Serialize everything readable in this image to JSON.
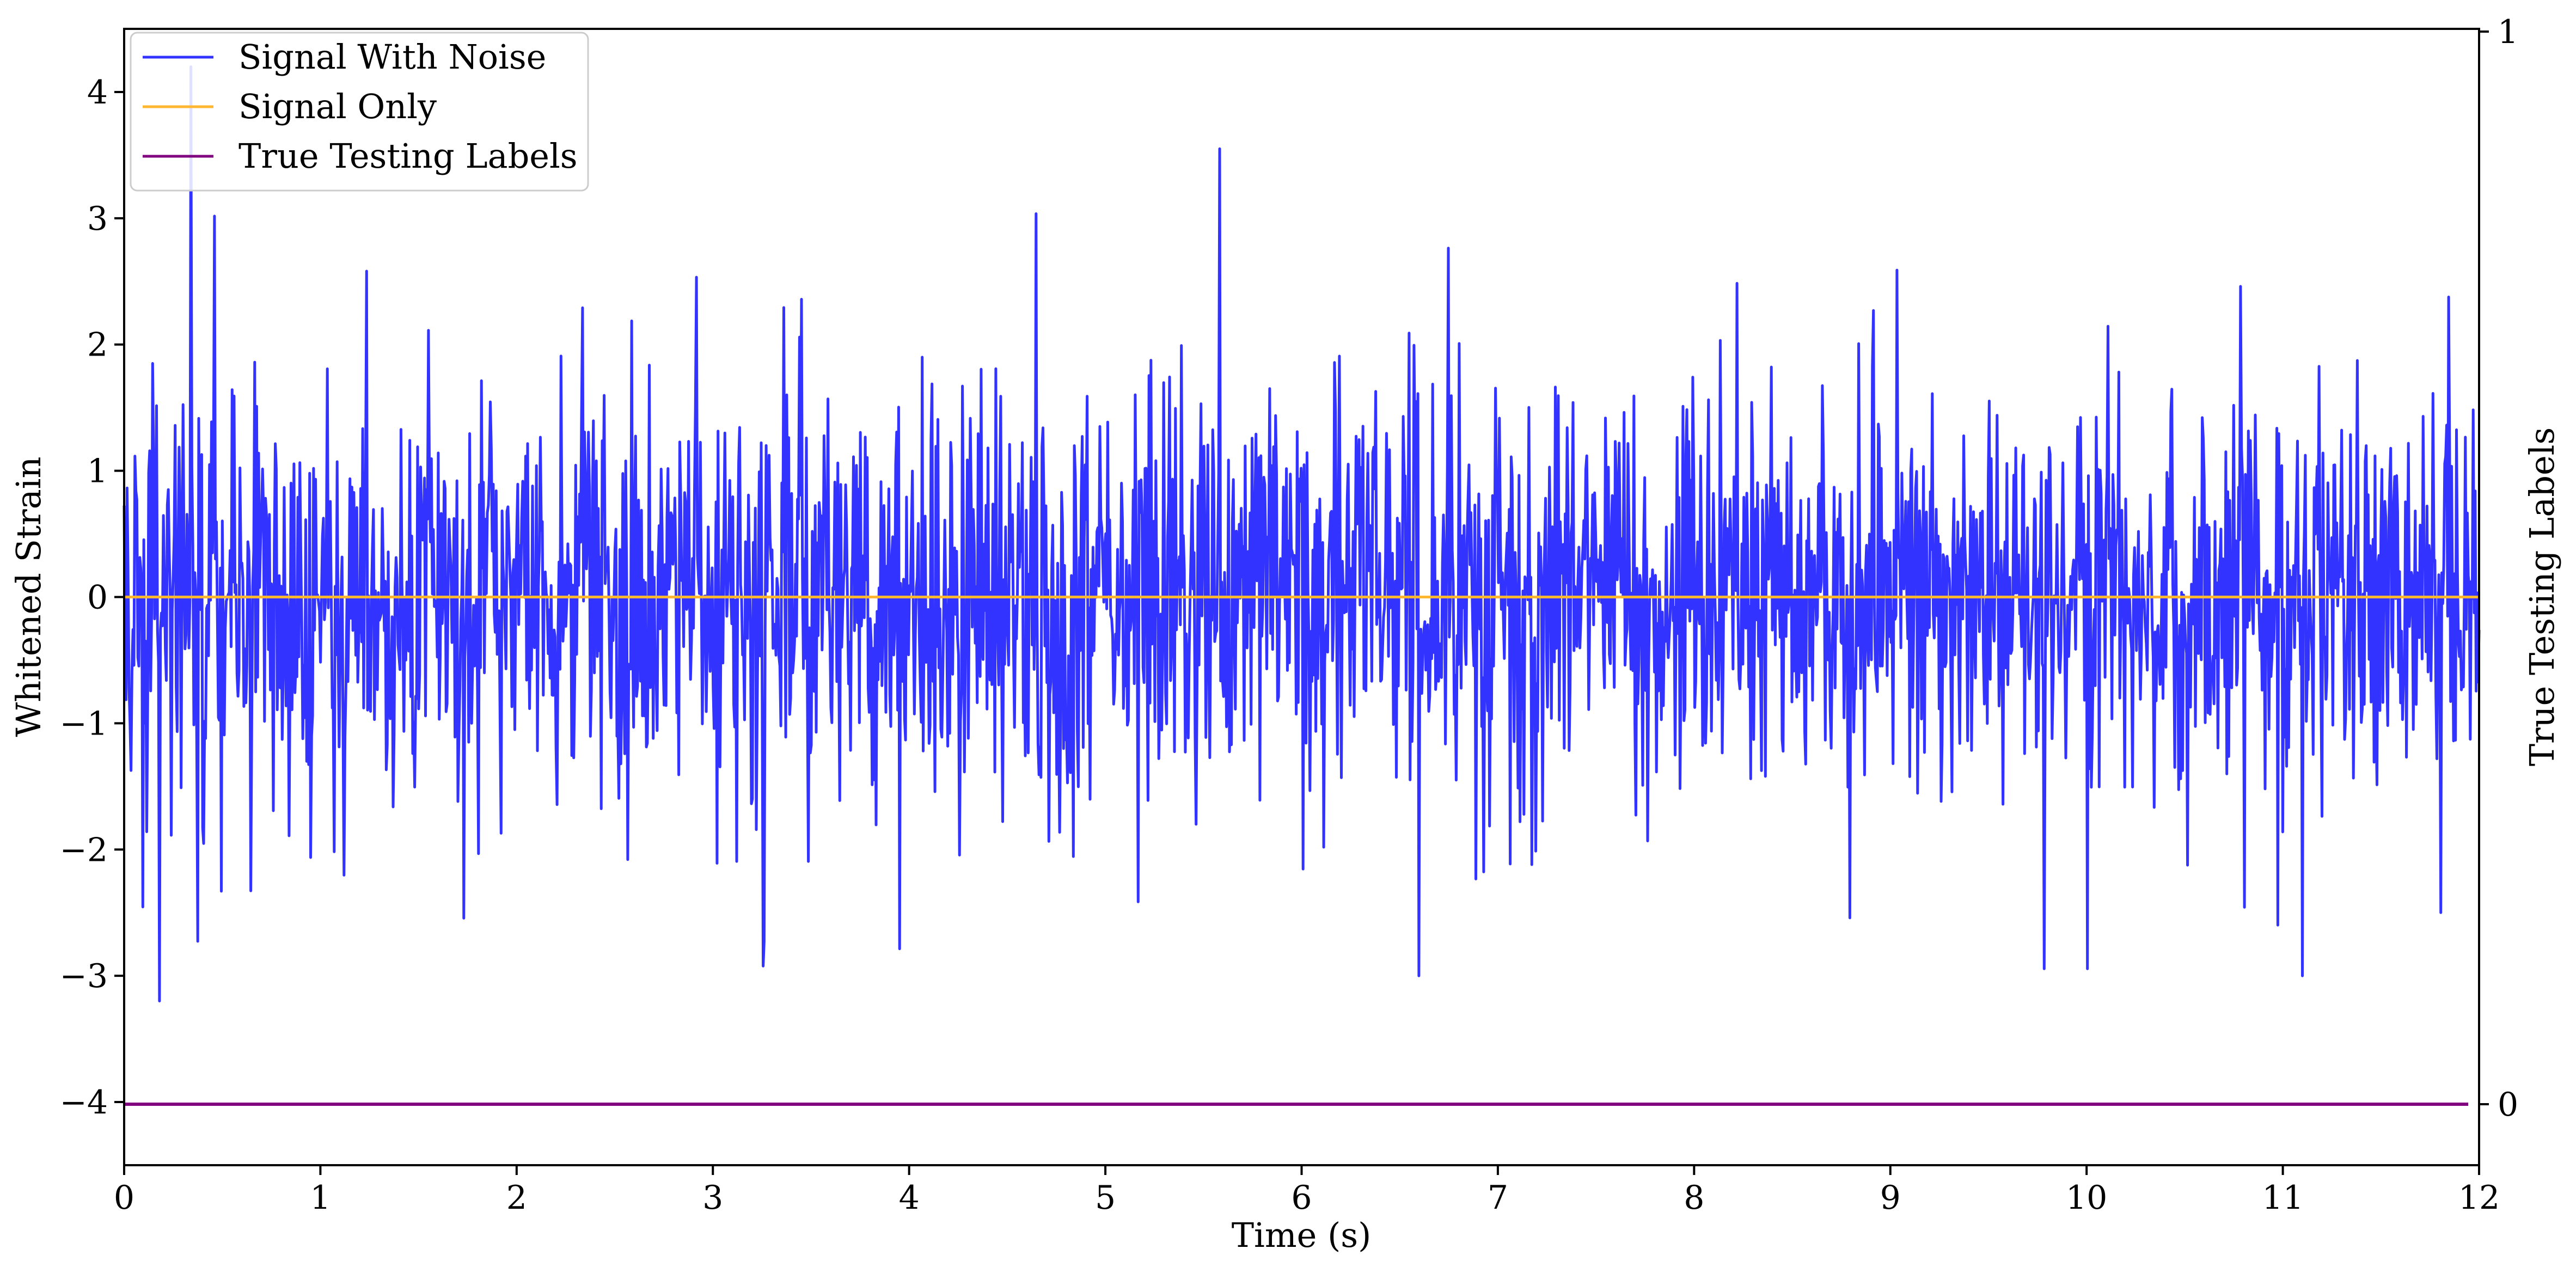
{
  "chart_data": {
    "type": "line",
    "xlabel": "Time (s)",
    "ylabel": "Whitened Strain",
    "y2label": "True Testing Labels",
    "xlim": [
      0,
      12
    ],
    "ylim": [
      -4.5,
      4.5
    ],
    "y2lim": [
      0,
      1
    ],
    "x_ticks": [
      0,
      1,
      2,
      3,
      4,
      5,
      6,
      7,
      8,
      9,
      10,
      11,
      12
    ],
    "x_tick_labels": [
      "0",
      "1",
      "2",
      "3",
      "4",
      "5",
      "6",
      "7",
      "8",
      "9",
      "10",
      "11",
      "12"
    ],
    "y_ticks": [
      -4,
      -3,
      -2,
      -1,
      0,
      1,
      2,
      3,
      4
    ],
    "y_tick_labels": [
      "−4",
      "−3",
      "−2",
      "−1",
      "0",
      "1",
      "2",
      "3",
      "4"
    ],
    "y2_ticks": [
      0,
      1
    ],
    "y2_tick_labels": [
      "0",
      "1"
    ],
    "legend_position": "upper-left",
    "grid": false,
    "series": [
      {
        "name": "Signal With Noise",
        "color": "#3333ff",
        "axis": "left",
        "kind": "noise",
        "x_range": [
          0,
          12
        ],
        "samples": 2400,
        "typical_amplitude": 1.5,
        "max": 4.2,
        "min": -3.2,
        "notable_peaks": [
          {
            "x": 0.34,
            "y": 4.2
          },
          {
            "x": 5.58,
            "y": 3.55
          },
          {
            "x": 0.18,
            "y": -3.2
          },
          {
            "x": 6.6,
            "y": -3.0
          },
          {
            "x": 11.1,
            "y": -3.0
          }
        ]
      },
      {
        "name": "Signal Only",
        "color": "#ffb732",
        "axis": "left",
        "x": [
          0,
          12
        ],
        "y": [
          0,
          0
        ]
      },
      {
        "name": "True Testing Labels",
        "color": "#800080",
        "axis": "right",
        "x": [
          0,
          12
        ],
        "y": [
          0,
          0
        ]
      }
    ]
  }
}
